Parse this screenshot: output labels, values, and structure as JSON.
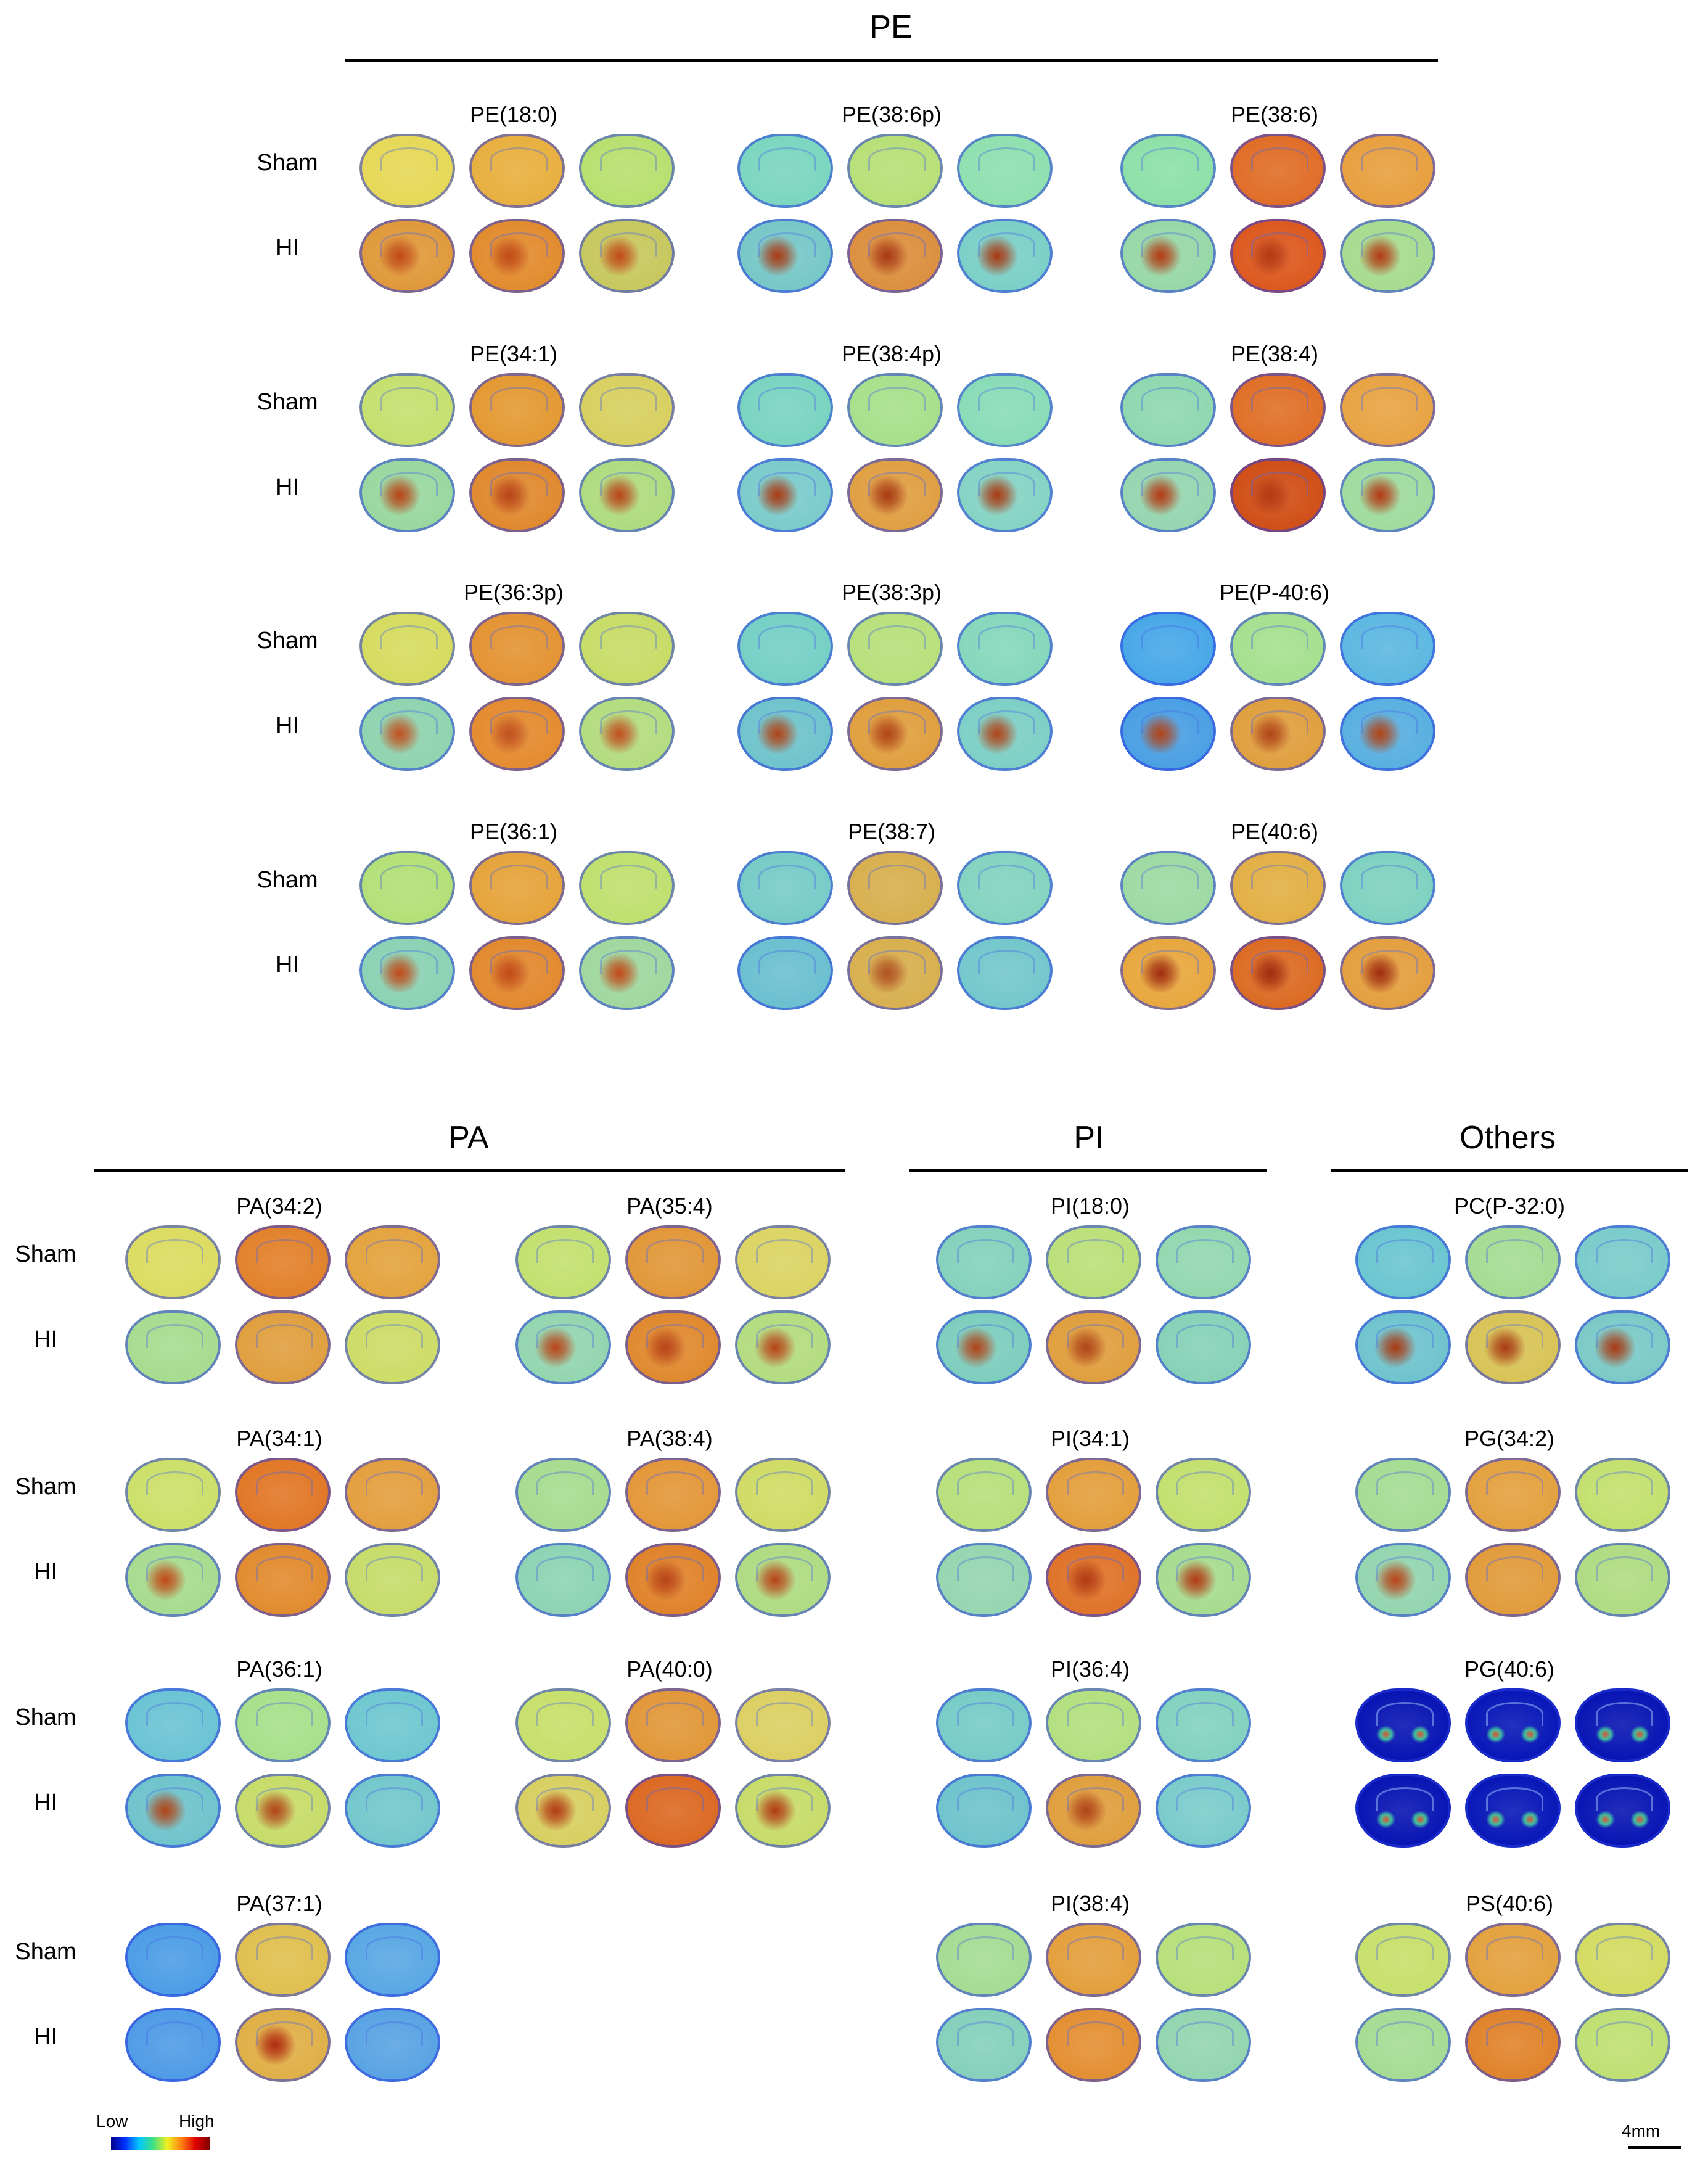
{
  "sections": [
    {
      "title": "PE",
      "row_labels": [
        "Sham",
        "HI"
      ],
      "panels": [
        {
          "label": "PE(18:0)",
          "sham": [
            "#e6d858",
            "#e8b040",
            "#b8e070"
          ],
          "hi": [
            "#e09a3c",
            "#e28c30",
            "#c8c860"
          ],
          "hi_lesion": [
            true,
            true,
            true
          ],
          "hi_lesion_col": "#c04a18"
        },
        {
          "label": "PE(38:6p)",
          "sham": [
            "#7cd6c0",
            "#b8e078",
            "#90e0b0"
          ],
          "hi": [
            "#78c8c8",
            "#dc9040",
            "#7cd0c8"
          ],
          "hi_lesion": [
            true,
            true,
            true
          ],
          "hi_lesion_col": "#a83a14"
        },
        {
          "label": "PE(38:6)",
          "sham": [
            "#8ee0a8",
            "#e06e28",
            "#e8a040"
          ],
          "hi": [
            "#98d8a8",
            "#dc5a20",
            "#a8dc90"
          ],
          "hi_lesion": [
            true,
            true,
            true
          ],
          "hi_lesion_col": "#b23a14"
        },
        {
          "label": "PE(34:1)",
          "sham": [
            "#c6e070",
            "#e49a34",
            "#d8d060"
          ],
          "hi": [
            "#9ad8a0",
            "#e08a30",
            "#b0dc80"
          ],
          "hi_lesion": [
            true,
            true,
            true
          ],
          "hi_lesion_col": "#b84418"
        },
        {
          "label": "PE(38:4p)",
          "sham": [
            "#7ad4c0",
            "#a8e08c",
            "#8adcb8"
          ],
          "hi": [
            "#7ccccc",
            "#e0a044",
            "#86d4c4"
          ],
          "hi_lesion": [
            true,
            true,
            true
          ],
          "hi_lesion_col": "#a83a14"
        },
        {
          "label": "PE(38:4)",
          "sham": [
            "#90d8b0",
            "#e07028",
            "#e8a444"
          ],
          "hi": [
            "#96d6b0",
            "#d05018",
            "#a0dca0"
          ],
          "hi_lesion": [
            true,
            true,
            true
          ],
          "hi_lesion_col": "#b23a14"
        },
        {
          "label": "PE(36:3p)",
          "sham": [
            "#d6dc60",
            "#e49434",
            "#c8dc68"
          ],
          "hi": [
            "#90d4b0",
            "#e48c30",
            "#b4dc80"
          ],
          "hi_lesion": [
            true,
            true,
            true
          ],
          "hi_lesion_col": "#c05020"
        },
        {
          "label": "PE(38:3p)",
          "sham": [
            "#76d0c6",
            "#b8e07c",
            "#86d8bc"
          ],
          "hi": [
            "#70c4cc",
            "#e0a040",
            "#7ed0c6"
          ],
          "hi_lesion": [
            true,
            true,
            true
          ],
          "hi_lesion_col": "#b04418"
        },
        {
          "label": "PE(P-40:6)",
          "sham": [
            "#4aa8e8",
            "#a6e090",
            "#5eb8e0"
          ],
          "hi": [
            "#4ca0e4",
            "#e0a040",
            "#5ab0e0"
          ],
          "hi_lesion": [
            true,
            true,
            true
          ],
          "hi_lesion_col": "#b04418"
        },
        {
          "label": "PE(36:1)",
          "sham": [
            "#b4e078",
            "#e6a43c",
            "#c0e070"
          ],
          "hi": [
            "#8cd2b4",
            "#e28a30",
            "#a0d8a0"
          ],
          "hi_lesion": [
            true,
            true,
            true
          ],
          "hi_lesion_col": "#c04a18"
        },
        {
          "label": "PE(38:7)",
          "sham": [
            "#78ccc8",
            "#d8b050",
            "#84d4c0"
          ],
          "hi": [
            "#6cc0d0",
            "#d8b050",
            "#74c8cc"
          ],
          "hi_lesion": [
            false,
            true,
            false
          ],
          "hi_lesion_col": "#b05020"
        },
        {
          "label": "PE(40:6)",
          "sham": [
            "#9edaa4",
            "#e2b046",
            "#80d2c0"
          ],
          "hi": [
            "#e8a840",
            "#dc6c24",
            "#e4a040"
          ],
          "hi_lesion": [
            true,
            true,
            true
          ],
          "hi_lesion_col": "#a02c10"
        }
      ]
    },
    {
      "title": "PA",
      "row_labels": [
        "Sham",
        "HI",
        "Sham",
        "HI",
        "Sham",
        "HI",
        "Sham",
        "HI"
      ],
      "panels": [
        {
          "label": "PA(34:2)",
          "sham": [
            "#dcdc62",
            "#e2822c",
            "#e4a440"
          ],
          "hi": [
            "#a8dc90",
            "#e0a040",
            "#cedc68"
          ],
          "hi_lesion": [
            false,
            false,
            false
          ],
          "hi_lesion_col": "#c05020"
        },
        {
          "label": "PA(35:4)",
          "sham": [
            "#c4e070",
            "#e2983a",
            "#dcd464"
          ],
          "hi": [
            "#94d6b0",
            "#e08a30",
            "#b4dc80"
          ],
          "hi_lesion": [
            true,
            true,
            true
          ],
          "hi_lesion_col": "#b84418"
        },
        {
          "label": "PA(34:1)",
          "sham": [
            "#cce06a",
            "#e27828",
            "#e4a040"
          ],
          "hi": [
            "#a8dc90",
            "#e28c30",
            "#c8dc6c"
          ],
          "hi_lesion": [
            true,
            false,
            false
          ],
          "hi_lesion_col": "#c04a18"
        },
        {
          "label": "PA(38:4)",
          "sham": [
            "#a8dc90",
            "#e4983a",
            "#d0dc66"
          ],
          "hi": [
            "#8ed4b4",
            "#e0842c",
            "#b0dc84"
          ],
          "hi_lesion": [
            false,
            true,
            true
          ],
          "hi_lesion_col": "#b84418"
        },
        {
          "label": "PA(36:1)",
          "sham": [
            "#6cc4d4",
            "#a8e08c",
            "#70c8d0"
          ],
          "hi": [
            "#70c4cc",
            "#c8dc6a",
            "#74c8cc"
          ],
          "hi_lesion": [
            true,
            true,
            false
          ],
          "hi_lesion_col": "#b04418"
        },
        {
          "label": "PA(40:0)",
          "sham": [
            "#c8e06c",
            "#e2983a",
            "#dcd064"
          ],
          "hi": [
            "#d8d062",
            "#dc6a24",
            "#c8dc6a"
          ],
          "hi_lesion": [
            true,
            false,
            true
          ],
          "hi_lesion_col": "#b23a14"
        },
        {
          "label": "PA(37:1)",
          "sham": [
            "#4e9ee6",
            "#e0c050",
            "#5aa8e4"
          ],
          "hi": [
            "#509ce6",
            "#e0b048",
            "#5aa4e4"
          ],
          "hi_lesion": [
            false,
            true,
            false
          ],
          "hi_lesion_col": "#b02a10"
        }
      ]
    },
    {
      "title": "PI",
      "row_labels": [
        "Sham",
        "HI"
      ],
      "panels": [
        {
          "label": "PI(18:0)",
          "sham": [
            "#86d2bc",
            "#bce07a",
            "#94d8b0"
          ],
          "hi": [
            "#7ecebe",
            "#e0a040",
            "#88d2b8"
          ],
          "hi_lesion": [
            true,
            true,
            false
          ],
          "hi_lesion_col": "#b04418"
        },
        {
          "label": "PI(34:1)",
          "sham": [
            "#b8e07c",
            "#e4a03e",
            "#c4e070"
          ],
          "hi": [
            "#96d6b0",
            "#e0742a",
            "#a8dc90"
          ],
          "hi_lesion": [
            false,
            true,
            true
          ],
          "hi_lesion_col": "#b23a14"
        },
        {
          "label": "PI(36:4)",
          "sham": [
            "#78ccc8",
            "#b4e080",
            "#84d2c0"
          ],
          "hi": [
            "#70c4cc",
            "#e0a040",
            "#7ccccc"
          ],
          "hi_lesion": [
            false,
            true,
            false
          ],
          "hi_lesion_col": "#b04418"
        },
        {
          "label": "PI(38:4)",
          "sham": [
            "#a6dc94",
            "#e4a03e",
            "#b8e07c"
          ],
          "hi": [
            "#86d0bc",
            "#e49034",
            "#94d6b0"
          ],
          "hi_lesion": [
            false,
            false,
            false
          ],
          "hi_lesion_col": "#b04418"
        }
      ]
    },
    {
      "title": "Others",
      "row_labels": [
        "Sham",
        "HI"
      ],
      "panels": [
        {
          "label": "PC(P-32:0)",
          "sham": [
            "#6cc6d0",
            "#a6dc94",
            "#7ccccc"
          ],
          "hi": [
            "#70c4ce",
            "#d8c458",
            "#7ccac8"
          ],
          "hi_lesion": [
            true,
            true,
            true
          ],
          "hi_lesion_col": "#a83a14"
        },
        {
          "label": "PG(34:2)",
          "sham": [
            "#a6dc94",
            "#e4a240",
            "#c4e070"
          ],
          "hi": [
            "#94d6b0",
            "#e29c3c",
            "#b0dc84"
          ],
          "hi_lesion": [
            true,
            false,
            false
          ],
          "hi_lesion_col": "#b84418"
        },
        {
          "label": "PG(40:6)",
          "sham": [
            "#0a16b4",
            "#0a18b8",
            "#0a16b4"
          ],
          "hi": [
            "#0a16b4",
            "#0a18b8",
            "#0a16b4"
          ],
          "hi_lesion": [
            false,
            false,
            false
          ],
          "hi_lesion_col": "#c05020",
          "dark": true
        },
        {
          "label": "PS(40:6)",
          "sham": [
            "#c8e06c",
            "#e4a240",
            "#d4dc64"
          ],
          "hi": [
            "#a6dc94",
            "#e0842c",
            "#c0e074"
          ],
          "hi_lesion": [
            false,
            false,
            false
          ],
          "hi_lesion_col": "#b84418"
        }
      ]
    }
  ],
  "colorbar": {
    "low_label": "Low",
    "high_label": "High"
  },
  "scalebar": {
    "label": "4mm"
  }
}
